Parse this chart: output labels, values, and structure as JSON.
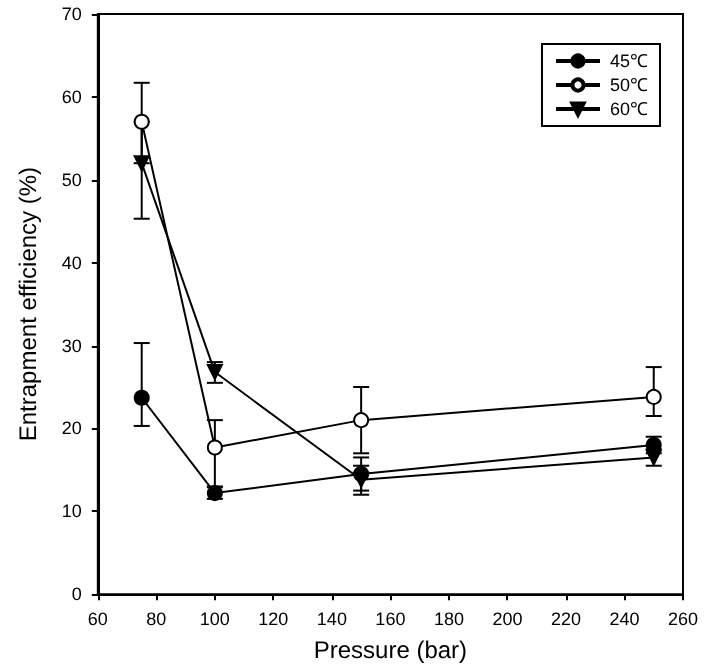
{
  "chart_data": {
    "type": "line",
    "xlabel": "Pressure (bar)",
    "ylabel": "Entrapment efficiency (%)",
    "x": [
      75,
      100,
      150,
      250
    ],
    "series": [
      {
        "name": "45℃",
        "color": "#000000",
        "marker": "circle",
        "values": [
          23.7,
          12.2,
          14.5,
          18
        ],
        "errors": [
          [
            20.3,
            30.3
          ],
          [
            11.5,
            12.9
          ],
          [
            12.5,
            15.5
          ],
          [
            17,
            19
          ]
        ]
      },
      {
        "name": "50℃",
        "color": "#000000",
        "marker": "emptyCircle",
        "values": [
          57,
          17.7,
          21,
          23.8
        ],
        "errors": [
          [
            52,
            61.7
          ],
          [
            13,
            21
          ],
          [
            17,
            25
          ],
          [
            21.5,
            27.4
          ]
        ]
      },
      {
        "name": "60℃",
        "color": "#000000",
        "marker": "triangle_down",
        "values": [
          52,
          26.8,
          13.8,
          16.5
        ],
        "errors": [
          [
            45.3,
            57
          ],
          [
            25.5,
            28
          ],
          [
            12,
            16.5
          ],
          [
            15.5,
            17.5
          ]
        ]
      }
    ],
    "xlim": [
      60,
      260
    ],
    "xticks": [
      60,
      80,
      100,
      120,
      140,
      160,
      180,
      200,
      220,
      240,
      260
    ],
    "ylim": [
      0,
      70
    ],
    "yticks": [
      0,
      10,
      20,
      30,
      40,
      50,
      60,
      70
    ],
    "grid": false,
    "legend": "top right",
    "line_style": "solid"
  }
}
